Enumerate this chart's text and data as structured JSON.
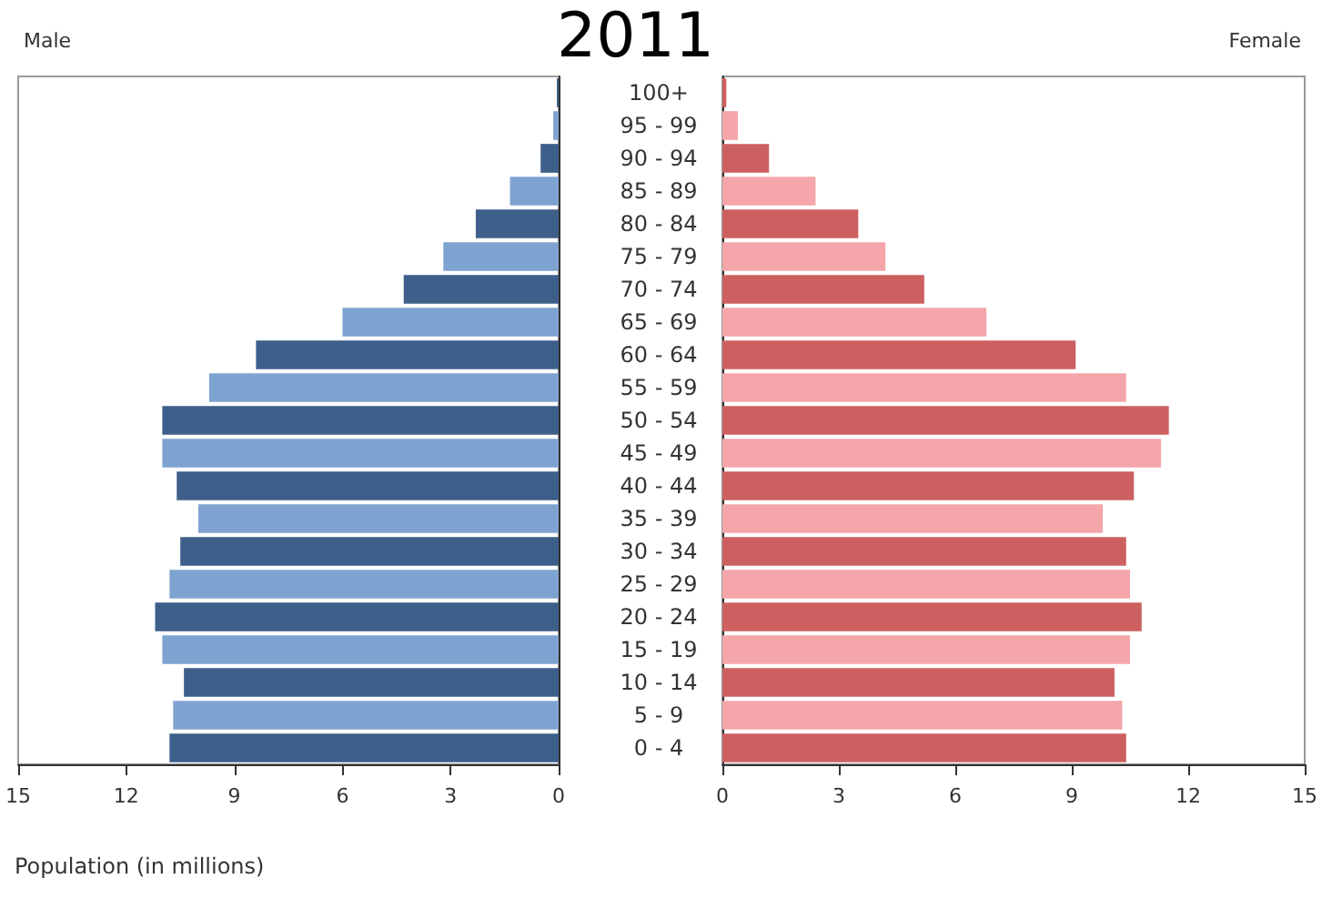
{
  "chart_data": [
    {
      "type": "bar",
      "orientation": "horizontal",
      "title": "Male",
      "annotations": [
        "2011"
      ],
      "xlabel": "Population (in millions)",
      "categories": [
        null,
        null,
        null,
        null,
        null,
        null,
        null,
        null,
        null,
        null,
        null,
        null,
        null,
        null,
        null,
        null,
        null,
        null,
        null,
        null,
        null
      ],
      "values": [
        0.05,
        0.15,
        0.5,
        1.35,
        2.3,
        3.2,
        4.3,
        6.0,
        8.4,
        9.7,
        11.0,
        11.0,
        10.6,
        10.0,
        10.5,
        10.8,
        11.2,
        11.0,
        10.4,
        10.7,
        10.8
      ],
      "colors": [
        "#3d5f8a",
        "#7fa3d0",
        "#3d5f8a",
        "#7fa3d0",
        "#3d5f8a",
        "#7fa3d0",
        "#3d5f8a",
        "#7fa3d0",
        "#3d5f8a",
        "#7fa3d0",
        "#3d5f8a",
        "#7fa3d0",
        "#3d5f8a",
        "#7fa3d0",
        "#3d5f8a",
        "#7fa3d0",
        "#3d5f8a",
        "#7fa3d0",
        "#3d5f8a",
        "#7fa3d0",
        "#3d5f8a"
      ],
      "xlim": [
        15,
        0
      ],
      "xticks": [
        15,
        12,
        9,
        6,
        3,
        0
      ],
      "grid": false
    },
    {
      "type": "bar",
      "orientation": "horizontal",
      "title": "Female",
      "categories": [
        "100+",
        "95 - 99",
        "90 - 94",
        "85 - 89",
        "80 - 84",
        "75 - 79",
        "70 - 74",
        "65 - 69",
        "60 - 64",
        "55 - 59",
        "50 - 54",
        "45 - 49",
        "40 - 44",
        "35 - 39",
        "30 - 34",
        "25 - 29",
        "20 - 24",
        "15 - 19",
        "10 - 14",
        "5 - 9",
        "0 - 4"
      ],
      "values": [
        0.1,
        0.4,
        1.2,
        2.4,
        3.5,
        4.2,
        5.2,
        6.8,
        9.1,
        10.4,
        11.5,
        11.3,
        10.6,
        9.8,
        10.4,
        10.5,
        10.8,
        10.5,
        10.1,
        10.3,
        10.4
      ],
      "colors": [
        "#cc6060",
        "#f4a6aa",
        "#cc6060",
        "#f4a6aa",
        "#cc6060",
        "#f4a6aa",
        "#cc6060",
        "#f4a6aa",
        "#cc6060",
        "#f4a6aa",
        "#cc6060",
        "#f4a6aa",
        "#cc6060",
        "#f4a6aa",
        "#cc6060",
        "#f4a6aa",
        "#cc6060",
        "#f4a6aa",
        "#cc6060",
        "#f4a6aa",
        "#cc6060"
      ],
      "xlim": [
        0,
        15
      ],
      "xticks": [
        0,
        3,
        6,
        9,
        12,
        15
      ],
      "grid": false
    }
  ]
}
